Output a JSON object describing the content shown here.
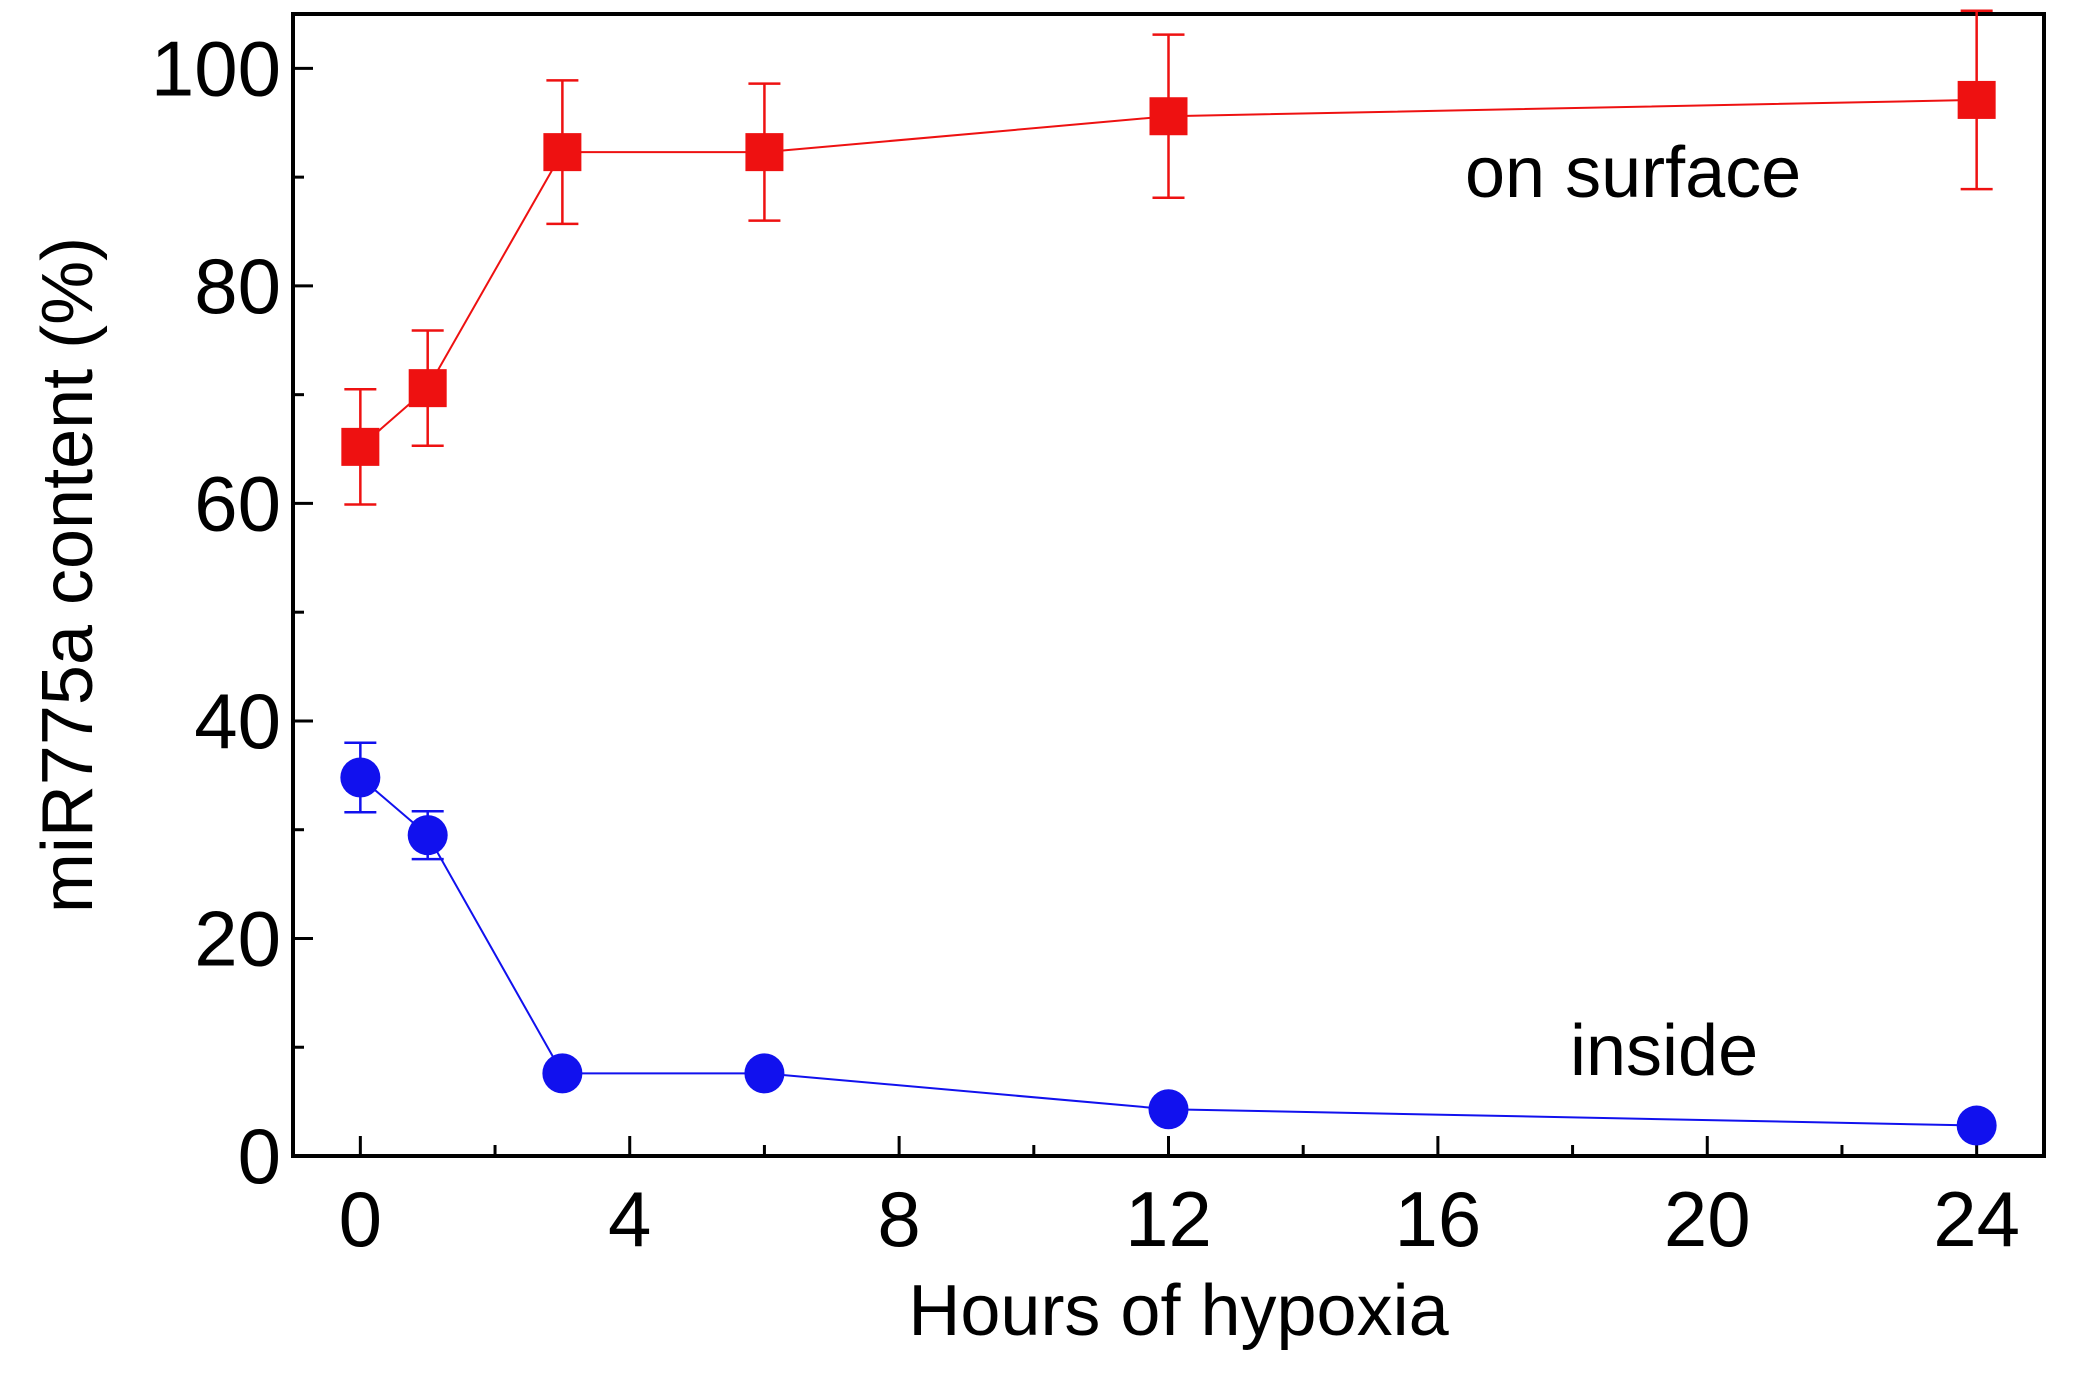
{
  "chart_data": {
    "type": "scatter",
    "title": "",
    "xlabel": "Hours of hypoxia",
    "ylabel": "miR775a content (%)",
    "xlim": [
      -1,
      25
    ],
    "ylim": [
      0,
      105
    ],
    "x_ticks": [
      0,
      4,
      8,
      12,
      16,
      20,
      24
    ],
    "x_tick_labels": [
      "0",
      "4",
      "8",
      "12",
      "16",
      "20",
      "24"
    ],
    "y_ticks": [
      0,
      20,
      40,
      60,
      80,
      100
    ],
    "y_tick_labels": [
      "0",
      "20",
      "40",
      "60",
      "80",
      "100"
    ],
    "x_minor_ticks": [
      2,
      6,
      10,
      14,
      18,
      22
    ],
    "y_minor_ticks": [
      10,
      30,
      50,
      70,
      90
    ],
    "grid": false,
    "legend": "none",
    "series": [
      {
        "name": "on surface",
        "color": "#ee1111",
        "marker": "square",
        "x": [
          0,
          1,
          3,
          6,
          12,
          24
        ],
        "values": [
          65.2,
          70.6,
          92.3,
          92.3,
          95.6,
          97.1
        ],
        "errors": [
          5.3,
          5.3,
          6.6,
          6.3,
          7.5,
          8.2
        ]
      },
      {
        "name": "inside",
        "color": "#1111ee",
        "marker": "circle",
        "x": [
          0,
          1,
          3,
          6,
          12,
          24
        ],
        "values": [
          34.8,
          29.5,
          7.6,
          7.6,
          4.3,
          2.8
        ],
        "errors": [
          3.2,
          2.2,
          0,
          0,
          0,
          0
        ]
      }
    ],
    "annotations": [
      {
        "text": "on surface",
        "series": "on surface",
        "placement": "above series, right side"
      },
      {
        "text": "inside",
        "series": "inside",
        "placement": "above series, right side"
      }
    ]
  }
}
